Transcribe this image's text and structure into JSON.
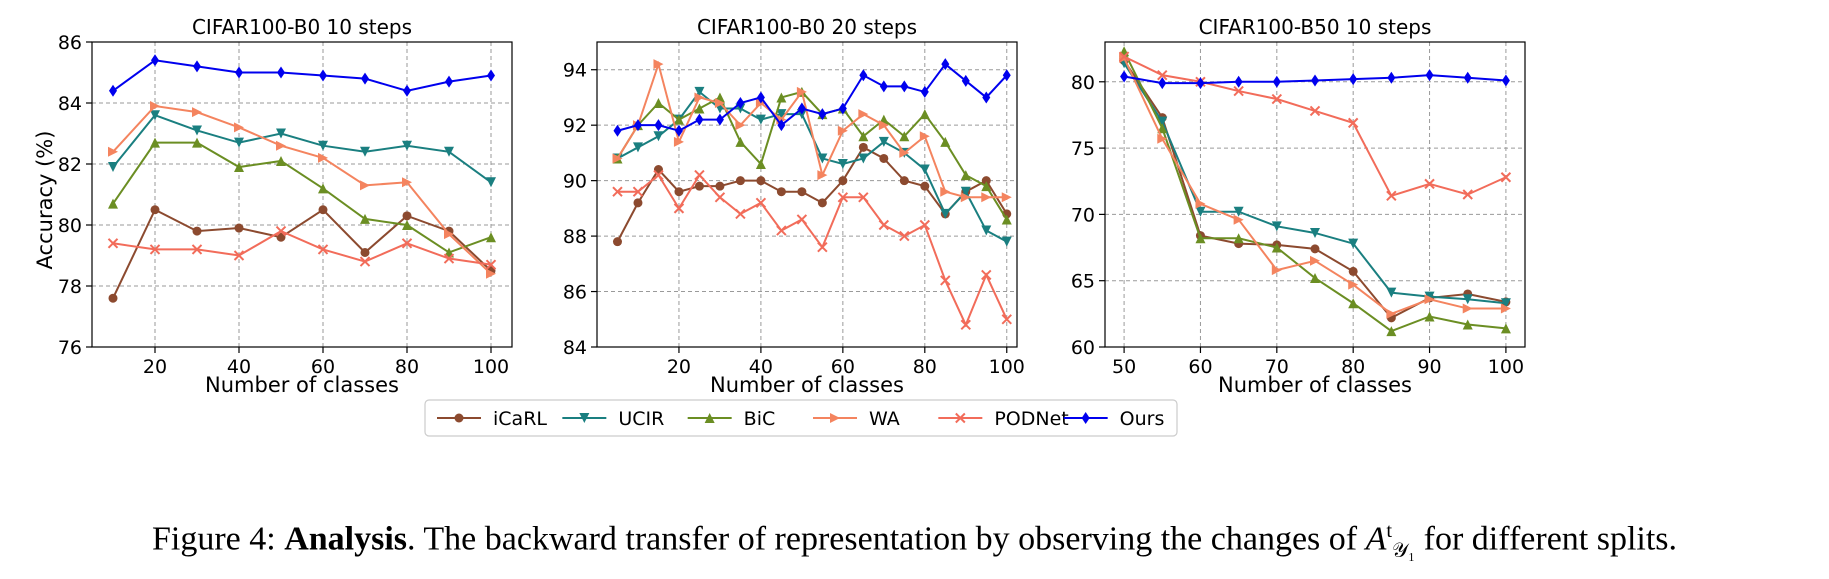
{
  "figure": {
    "caption": {
      "label": "Figure 4:",
      "bold": "Analysis",
      "text_before_symbol": ". The backward transfer of representation by observing the changes of",
      "symbol": "A",
      "symbol_sup": "t",
      "symbol_sub": "𝒴₁",
      "text_after_symbol": "for different splits."
    },
    "shared_ylabel": "Accuracy (%)",
    "legend": {
      "placement": "bottom-center",
      "entries": [
        {
          "name": "iCaRL",
          "color": "#8c4a2f",
          "marker": "circle"
        },
        {
          "name": "UCIR",
          "color": "#1a7f80",
          "marker": "triangle-down"
        },
        {
          "name": "BiC",
          "color": "#6b8e23",
          "marker": "triangle-up"
        },
        {
          "name": "WA",
          "color": "#f4845f",
          "marker": "triangle-right"
        },
        {
          "name": "PODNet",
          "color": "#f26c5a",
          "marker": "x"
        },
        {
          "name": "Ours",
          "color": "#0000ee",
          "marker": "diamond"
        }
      ]
    }
  },
  "chart_data": [
    {
      "type": "line",
      "title": "CIFAR100-B0 10 steps",
      "xlabel": "Number of classes",
      "ylabel": "Accuracy (%)",
      "xlim": [
        5,
        105
      ],
      "ylim": [
        76,
        86
      ],
      "xticks": [
        20,
        40,
        60,
        80,
        100
      ],
      "yticks": [
        76,
        78,
        80,
        82,
        84,
        86
      ],
      "grid": true,
      "x": [
        10,
        20,
        30,
        40,
        50,
        60,
        70,
        80,
        90,
        100
      ],
      "series": [
        {
          "name": "iCaRL",
          "values": [
            77.6,
            80.5,
            79.8,
            79.9,
            79.6,
            80.5,
            79.1,
            80.3,
            79.8,
            78.5
          ]
        },
        {
          "name": "UCIR",
          "values": [
            81.9,
            83.6,
            83.1,
            82.7,
            83.0,
            82.6,
            82.4,
            82.6,
            82.4,
            81.4
          ]
        },
        {
          "name": "BiC",
          "values": [
            80.7,
            82.7,
            82.7,
            81.9,
            82.1,
            81.2,
            80.2,
            80.0,
            79.1,
            79.6
          ]
        },
        {
          "name": "WA",
          "values": [
            82.4,
            83.9,
            83.7,
            83.2,
            82.6,
            82.2,
            81.3,
            81.4,
            79.7,
            78.4
          ]
        },
        {
          "name": "PODNet",
          "values": [
            79.4,
            79.2,
            79.2,
            79.0,
            79.8,
            79.2,
            78.8,
            79.4,
            78.9,
            78.7
          ]
        },
        {
          "name": "Ours",
          "values": [
            84.4,
            85.4,
            85.2,
            85.0,
            85.0,
            84.9,
            84.8,
            84.4,
            84.7,
            84.9
          ]
        }
      ]
    },
    {
      "type": "line",
      "title": "CIFAR100-B0 20 steps",
      "xlabel": "Number of classes",
      "ylabel": "",
      "xlim": [
        0,
        102.5
      ],
      "ylim": [
        84,
        95
      ],
      "xticks": [
        20,
        40,
        60,
        80,
        100
      ],
      "yticks": [
        84,
        86,
        88,
        90,
        92,
        94
      ],
      "grid": true,
      "x": [
        5,
        10,
        15,
        20,
        25,
        30,
        35,
        40,
        45,
        50,
        55,
        60,
        65,
        70,
        75,
        80,
        85,
        90,
        95,
        100
      ],
      "series": [
        {
          "name": "iCaRL",
          "values": [
            87.8,
            89.2,
            90.4,
            89.6,
            89.8,
            89.8,
            90.0,
            90.0,
            89.6,
            89.6,
            89.2,
            90.0,
            91.2,
            90.8,
            90.0,
            89.8,
            88.8,
            89.6,
            90.0,
            88.8
          ]
        },
        {
          "name": "UCIR",
          "values": [
            90.8,
            91.2,
            91.6,
            92.2,
            93.2,
            92.6,
            92.6,
            92.2,
            92.4,
            92.4,
            90.8,
            90.6,
            90.8,
            91.4,
            91.0,
            90.4,
            88.8,
            89.6,
            88.2,
            87.8
          ]
        },
        {
          "name": "BiC",
          "values": [
            90.8,
            92.0,
            92.8,
            92.2,
            92.6,
            93.0,
            91.4,
            90.6,
            93.0,
            93.2,
            92.4,
            92.6,
            91.6,
            92.2,
            91.6,
            92.4,
            91.4,
            90.2,
            89.8,
            88.6
          ]
        },
        {
          "name": "WA",
          "values": [
            90.8,
            92.0,
            94.2,
            91.4,
            93.0,
            92.8,
            92.0,
            92.8,
            92.2,
            93.2,
            90.2,
            91.8,
            92.4,
            92.0,
            91.0,
            91.6,
            89.6,
            89.4,
            89.4,
            89.4
          ]
        },
        {
          "name": "PODNet",
          "values": [
            89.6,
            89.6,
            90.2,
            89.0,
            90.2,
            89.4,
            88.8,
            89.2,
            88.2,
            88.6,
            87.6,
            89.4,
            89.4,
            88.4,
            88.0,
            88.4,
            86.4,
            84.8,
            86.6,
            85.0
          ]
        },
        {
          "name": "Ours",
          "values": [
            91.8,
            92.0,
            92.0,
            91.8,
            92.2,
            92.2,
            92.8,
            93.0,
            92.0,
            92.6,
            92.4,
            92.6,
            93.8,
            93.4,
            93.4,
            93.2,
            94.2,
            93.6,
            93.0,
            93.8
          ]
        }
      ]
    },
    {
      "type": "line",
      "title": "CIFAR100-B50 10 steps",
      "xlabel": "Number of classes",
      "ylabel": "",
      "xlim": [
        47.5,
        102.5
      ],
      "ylim": [
        60,
        83
      ],
      "xticks": [
        50,
        60,
        70,
        80,
        90,
        100
      ],
      "yticks": [
        60,
        65,
        70,
        75,
        80
      ],
      "grid": true,
      "x": [
        50,
        55,
        60,
        65,
        70,
        75,
        80,
        85,
        90,
        95,
        100
      ],
      "series": [
        {
          "name": "iCaRL",
          "values": [
            81.6,
            77.3,
            68.4,
            67.8,
            67.7,
            67.4,
            65.7,
            62.2,
            63.7,
            64.0,
            63.4
          ]
        },
        {
          "name": "UCIR",
          "values": [
            81.4,
            77.0,
            70.2,
            70.2,
            69.1,
            68.6,
            67.8,
            64.1,
            63.8,
            63.6,
            63.3
          ]
        },
        {
          "name": "BiC",
          "values": [
            82.3,
            76.5,
            68.2,
            68.2,
            67.5,
            65.2,
            63.3,
            61.2,
            62.3,
            61.7,
            61.4
          ]
        },
        {
          "name": "WA",
          "values": [
            81.8,
            75.7,
            70.8,
            69.6,
            65.8,
            66.5,
            64.7,
            62.5,
            63.6,
            62.9,
            62.9
          ]
        },
        {
          "name": "PODNet",
          "values": [
            81.9,
            80.5,
            80.0,
            79.3,
            78.7,
            77.8,
            76.9,
            71.4,
            72.3,
            71.5,
            72.8
          ]
        },
        {
          "name": "Ours",
          "values": [
            80.4,
            79.9,
            79.9,
            80.0,
            80.0,
            80.1,
            80.2,
            80.3,
            80.5,
            80.3,
            80.1
          ]
        }
      ]
    }
  ]
}
